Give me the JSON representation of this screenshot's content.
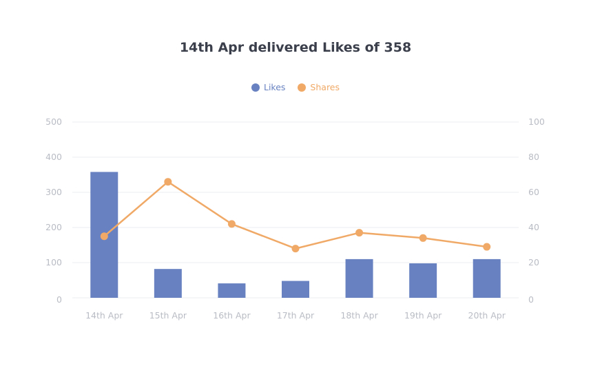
{
  "chart_data": {
    "type": "bar",
    "title": "14th Apr delivered Likes of 358",
    "categories": [
      "14th Apr",
      "15th Apr",
      "16th Apr",
      "17th Apr",
      "18th Apr",
      "19th Apr",
      "20th Apr"
    ],
    "series": [
      {
        "name": "Likes",
        "type": "bar",
        "axis": "left",
        "color": "#6882c1",
        "values": [
          358,
          82,
          41,
          48,
          110,
          98,
          110
        ]
      },
      {
        "name": "Shares",
        "type": "line",
        "axis": "right",
        "color": "#f0a966",
        "values": [
          35,
          66,
          42,
          28,
          37,
          34,
          29
        ]
      }
    ],
    "y_left": {
      "ticks": [
        "0",
        "100",
        "200",
        "300",
        "400",
        "500"
      ],
      "ylim": [
        0,
        500
      ]
    },
    "y_right": {
      "ticks": [
        "0",
        "20",
        "40",
        "60",
        "80",
        "100"
      ],
      "ylim": [
        0,
        100
      ]
    },
    "grid": true,
    "legend_position": "top-center",
    "colors": {
      "title": "#3a3f4b",
      "ticks": "#b9bcc4",
      "grid": "#ebedf1"
    }
  }
}
